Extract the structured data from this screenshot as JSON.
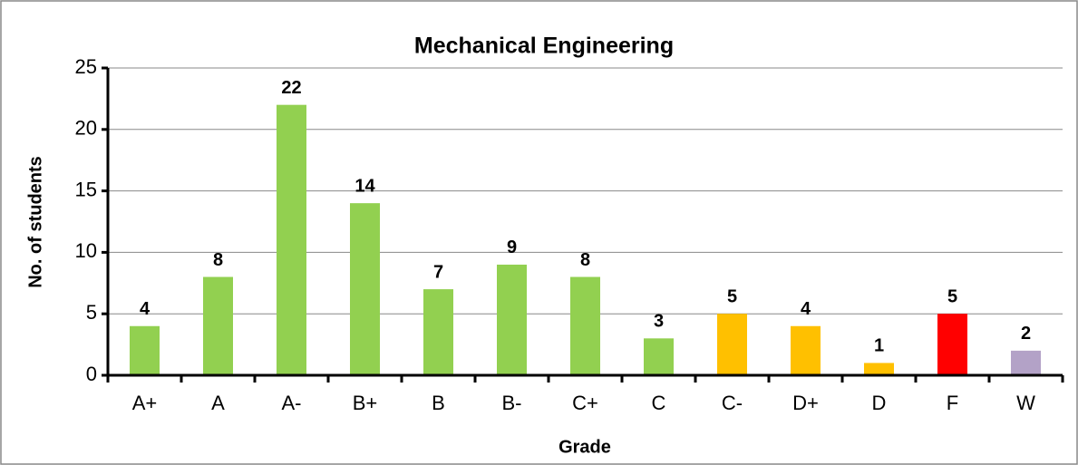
{
  "chart_data": {
    "type": "bar",
    "title": "Mechanical Engineering",
    "x_label": "Grade",
    "y_label": "No. of students",
    "categories": [
      "A+",
      "A",
      "A-",
      "B+",
      "B",
      "B-",
      "C+",
      "C",
      "C-",
      "D+",
      "D",
      "F",
      "W"
    ],
    "values": [
      4,
      8,
      22,
      14,
      7,
      9,
      8,
      3,
      5,
      4,
      1,
      5,
      2
    ],
    "colors": [
      "#92d050",
      "#92d050",
      "#92d050",
      "#92d050",
      "#92d050",
      "#92d050",
      "#92d050",
      "#92d050",
      "#ffc000",
      "#ffc000",
      "#ffc000",
      "#ff0000",
      "#b3a2c7"
    ],
    "ylim": [
      0,
      25
    ],
    "yticks": [
      0,
      5,
      10,
      15,
      20,
      25
    ],
    "grid": true
  }
}
